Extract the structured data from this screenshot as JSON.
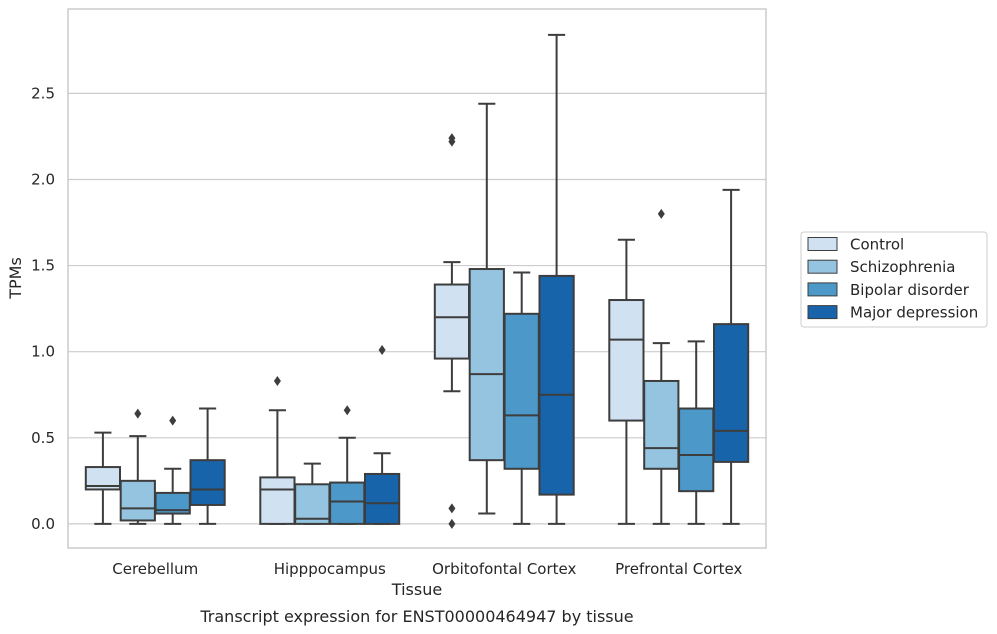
{
  "caption": "Transcript expression for ENST00000464947 by tissue",
  "chart_data": {
    "type": "box",
    "xlabel": "Tissue",
    "ylabel": "TPMs",
    "categories": [
      "Cerebellum",
      "Hipppocampus",
      "Orbitofontal Cortex",
      "Prefrontal Cortex"
    ],
    "ylim": [
      -0.14,
      2.99
    ],
    "yticks": [
      0.0,
      0.5,
      1.0,
      1.5,
      2.0,
      2.5
    ],
    "ytick_labels": [
      "0.0",
      "0.5",
      "1.0",
      "1.5",
      "2.0",
      "2.5"
    ],
    "grid": "horizontal",
    "legend_position": "right",
    "series": [
      {
        "name": "Control",
        "color": "#d0e1f2",
        "boxes": [
          {
            "whisker_low": 0.0,
            "q1": 0.2,
            "median": 0.22,
            "q3": 0.33,
            "whisker_high": 0.53,
            "outliers": []
          },
          {
            "whisker_low": 0.0,
            "q1": 0.0,
            "median": 0.2,
            "q3": 0.27,
            "whisker_high": 0.66,
            "outliers": [
              0.83
            ]
          },
          {
            "whisker_low": 0.77,
            "q1": 0.96,
            "median": 1.2,
            "q3": 1.39,
            "whisker_high": 1.52,
            "outliers": [
              2.22,
              2.24,
              0.09,
              0.0
            ]
          },
          {
            "whisker_low": 0.0,
            "q1": 0.6,
            "median": 1.07,
            "q3": 1.3,
            "whisker_high": 1.65,
            "outliers": []
          }
        ]
      },
      {
        "name": "Schizophrenia",
        "color": "#94c4df",
        "boxes": [
          {
            "whisker_low": 0.0,
            "q1": 0.02,
            "median": 0.09,
            "q3": 0.25,
            "whisker_high": 0.51,
            "outliers": [
              0.64
            ]
          },
          {
            "whisker_low": 0.0,
            "q1": 0.0,
            "median": 0.03,
            "q3": 0.23,
            "whisker_high": 0.35,
            "outliers": []
          },
          {
            "whisker_low": 0.06,
            "q1": 0.37,
            "median": 0.87,
            "q3": 1.48,
            "whisker_high": 2.44,
            "outliers": []
          },
          {
            "whisker_low": 0.0,
            "q1": 0.32,
            "median": 0.44,
            "q3": 0.83,
            "whisker_high": 1.05,
            "outliers": [
              1.8
            ]
          }
        ]
      },
      {
        "name": "Bipolar disorder",
        "color": "#4b98c9",
        "boxes": [
          {
            "whisker_low": 0.0,
            "q1": 0.06,
            "median": 0.08,
            "q3": 0.18,
            "whisker_high": 0.32,
            "outliers": [
              0.6
            ]
          },
          {
            "whisker_low": 0.0,
            "q1": 0.0,
            "median": 0.13,
            "q3": 0.24,
            "whisker_high": 0.5,
            "outliers": [
              0.66
            ]
          },
          {
            "whisker_low": 0.0,
            "q1": 0.32,
            "median": 0.63,
            "q3": 1.22,
            "whisker_high": 1.46,
            "outliers": []
          },
          {
            "whisker_low": 0.0,
            "q1": 0.19,
            "median": 0.4,
            "q3": 0.67,
            "whisker_high": 1.06,
            "outliers": []
          }
        ]
      },
      {
        "name": "Major depression",
        "color": "#1764ab",
        "boxes": [
          {
            "whisker_low": 0.0,
            "q1": 0.11,
            "median": 0.2,
            "q3": 0.37,
            "whisker_high": 0.67,
            "outliers": []
          },
          {
            "whisker_low": 0.0,
            "q1": 0.0,
            "median": 0.12,
            "q3": 0.29,
            "whisker_high": 0.41,
            "outliers": [
              1.01
            ]
          },
          {
            "whisker_low": 0.0,
            "q1": 0.17,
            "median": 0.75,
            "q3": 1.44,
            "whisker_high": 2.84,
            "outliers": []
          },
          {
            "whisker_low": 0.0,
            "q1": 0.36,
            "median": 0.54,
            "q3": 1.16,
            "whisker_high": 1.94,
            "outliers": []
          }
        ]
      }
    ]
  }
}
